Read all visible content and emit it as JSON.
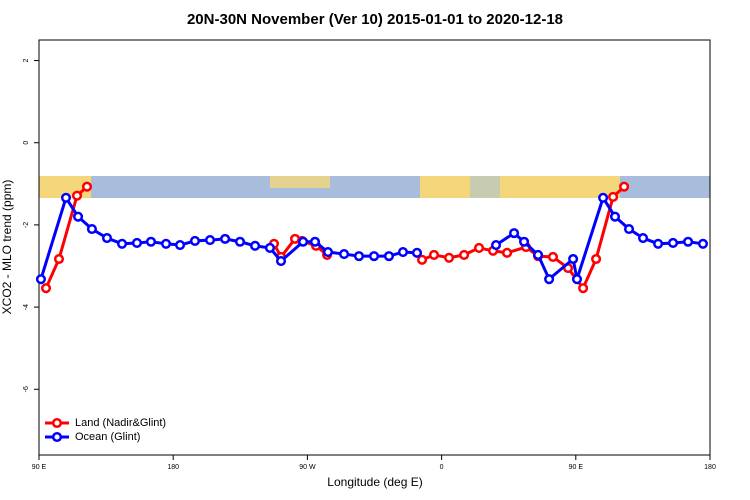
{
  "chart_data": {
    "type": "line",
    "title": "20N-30N November (Ver 10)   2015-01-01 to 2020-12-18",
    "x_label": "Longitude (deg E)",
    "y_label": "XCO2 - MLO trend (ppm)",
    "xlim": [
      90,
      540
    ],
    "xticks": [
      {
        "value": 90,
        "label": "90 E"
      },
      180,
      {
        "value": 270,
        "label": "90 W"
      },
      {
        "value": 360,
        "label": "0"
      },
      {
        "value": 450,
        "label": "90 E"
      },
      {
        "value": 540,
        "label": "180"
      }
    ],
    "ylim": [
      -7.6,
      2.5
    ],
    "yticks": [
      2,
      0,
      -2,
      -4,
      -6
    ],
    "legend": "bottomleft",
    "series": [
      {
        "name": "Land (Nadir&Glint)",
        "color": "#ff0000",
        "x": [
          94.7,
          103.4,
          115.5,
          122.2,
          null,
          247.6,
          252.3,
          261.7,
          266.4,
          275.8,
          283.2,
          null,
          346.9,
          354.9,
          365.0,
          375.1,
          385.1,
          394.5,
          403.9,
          416.6,
          424.7,
          434.7,
          444.8,
          454.9,
          463.6,
          475.0,
          482.4
        ],
        "values": [
          -3.54,
          -2.83,
          -1.29,
          -1.07,
          null,
          -2.46,
          -2.78,
          -2.34,
          -2.39,
          -2.51,
          -2.73,
          null,
          -2.85,
          -2.73,
          -2.8,
          -2.73,
          -2.56,
          -2.63,
          -2.68,
          -2.54,
          -2.76,
          -2.78,
          -3.05,
          -3.54,
          -2.83,
          -1.32,
          -1.07
        ]
      },
      {
        "name": "Ocean (Glint)",
        "color": "#0000ff",
        "x": [
          91.3,
          108.1,
          116.2,
          125.5,
          135.6,
          145.7,
          155.7,
          165.1,
          175.2,
          184.6,
          194.6,
          204.7,
          214.8,
          224.8,
          234.9,
          244.9,
          252.3,
          267.1,
          275.1,
          283.8,
          294.6,
          304.6,
          314.7,
          324.7,
          334.1,
          343.5,
          null,
          396.5,
          408.6,
          415.3,
          424.7,
          432.1,
          448.2,
          450.8,
          468.3,
          476.3,
          485.7,
          495.1,
          505.2,
          515.2,
          525.3,
          535.3
        ],
        "values": [
          -3.32,
          -1.34,
          -1.8,
          -2.1,
          -2.32,
          -2.46,
          -2.44,
          -2.41,
          -2.46,
          -2.49,
          -2.39,
          -2.37,
          -2.34,
          -2.41,
          -2.51,
          -2.56,
          -2.88,
          -2.41,
          -2.41,
          -2.66,
          -2.71,
          -2.76,
          -2.76,
          -2.76,
          -2.66,
          -2.68,
          null,
          -2.49,
          -2.2,
          -2.41,
          -2.73,
          -3.32,
          -2.83,
          -3.32,
          -1.34,
          -1.8,
          -2.1,
          -2.32,
          -2.46,
          -2.44,
          -2.41,
          -2.46
        ]
      }
    ]
  }
}
